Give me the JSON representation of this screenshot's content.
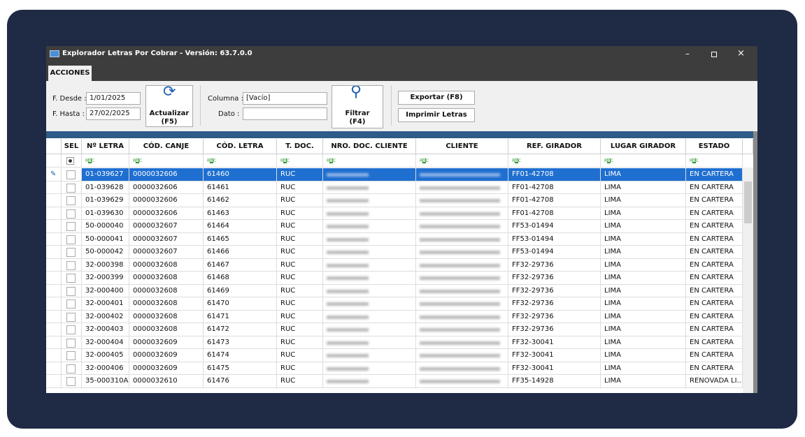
{
  "window": {
    "title": "Explorador Letras Por Cobrar - Versión: 63.7.0.0",
    "tab": "ACCIONES"
  },
  "toolbar": {
    "desde_label": "F. Desde :",
    "desde": "1/01/2025",
    "hasta_label": "F. Hasta :",
    "hasta": "27/02/2025",
    "actualizar": "Actualizar",
    "actualizar_key": "(F5)",
    "columna_label": "Columna :",
    "columna": "[Vacío]",
    "dato_label": "Dato :",
    "filtrar": "Filtrar",
    "filtrar_key": "(F4)",
    "exportar": "Exportar (F8)",
    "imprimir": "Imprimir Letras"
  },
  "table": {
    "headers": [
      "SEL",
      "Nº LETRA",
      "CÓD. CANJE",
      "CÓD. LETRA",
      "T. DOC.",
      "NRO. DOC. CLIENTE",
      "CLIENTE",
      "REF. GIRADOR",
      "LUGAR GIRADOR",
      "ESTADO"
    ],
    "rows": [
      [
        "01-039627",
        "0000032606",
        "61460",
        "RUC",
        "FF01-42708",
        "LIMA",
        "EN CARTERA"
      ],
      [
        "01-039628",
        "0000032606",
        "61461",
        "RUC",
        "FF01-42708",
        "LIMA",
        "EN CARTERA"
      ],
      [
        "01-039629",
        "0000032606",
        "61462",
        "RUC",
        "FF01-42708",
        "LIMA",
        "EN CARTERA"
      ],
      [
        "01-039630",
        "0000032606",
        "61463",
        "RUC",
        "FF01-42708",
        "LIMA",
        "EN CARTERA"
      ],
      [
        "50-000040",
        "0000032607",
        "61464",
        "RUC",
        "FF53-01494",
        "LIMA",
        "EN CARTERA"
      ],
      [
        "50-000041",
        "0000032607",
        "61465",
        "RUC",
        "FF53-01494",
        "LIMA",
        "EN CARTERA"
      ],
      [
        "50-000042",
        "0000032607",
        "61466",
        "RUC",
        "FF53-01494",
        "LIMA",
        "EN CARTERA"
      ],
      [
        "32-000398",
        "0000032608",
        "61467",
        "RUC",
        "FF32-29736",
        "LIMA",
        "EN CARTERA"
      ],
      [
        "32-000399",
        "0000032608",
        "61468",
        "RUC",
        "FF32-29736",
        "LIMA",
        "EN CARTERA"
      ],
      [
        "32-000400",
        "0000032608",
        "61469",
        "RUC",
        "FF32-29736",
        "LIMA",
        "EN CARTERA"
      ],
      [
        "32-000401",
        "0000032608",
        "61470",
        "RUC",
        "FF32-29736",
        "LIMA",
        "EN CARTERA"
      ],
      [
        "32-000402",
        "0000032608",
        "61471",
        "RUC",
        "FF32-29736",
        "LIMA",
        "EN CARTERA"
      ],
      [
        "32-000403",
        "0000032608",
        "61472",
        "RUC",
        "FF32-29736",
        "LIMA",
        "EN CARTERA"
      ],
      [
        "32-000404",
        "0000032609",
        "61473",
        "RUC",
        "FF32-30041",
        "LIMA",
        "EN CARTERA"
      ],
      [
        "32-000405",
        "0000032609",
        "61474",
        "RUC",
        "FF32-30041",
        "LIMA",
        "EN CARTERA"
      ],
      [
        "32-000406",
        "0000032609",
        "61475",
        "RUC",
        "FF32-30041",
        "LIMA",
        "EN CARTERA"
      ],
      [
        "35-000310A",
        "0000032610",
        "61476",
        "RUC",
        "FF35-14928",
        "LIMA",
        "RENOVADA LI..."
      ]
    ]
  }
}
